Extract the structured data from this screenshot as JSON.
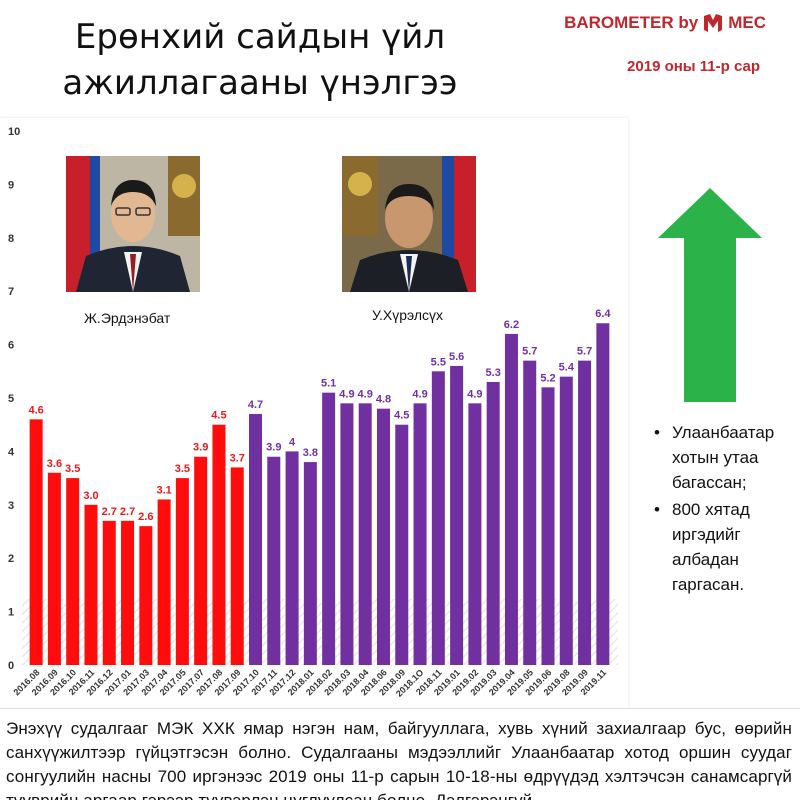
{
  "header": {
    "title_line1": "Ерөнхий сайдын үйл",
    "title_line2": "ажиллагааны үнэлгээ",
    "brand_prefix": "BAROMETER by",
    "brand_name": "MEC",
    "subtitle": "2019 оны 11-р сар",
    "brand_color": "#c0262d"
  },
  "photos": {
    "left_caption": "Ж.Эрдэнэбат",
    "right_caption": "У.Хүрэлсүх"
  },
  "side": {
    "arrow_color": "#2bb34a",
    "bullets": [
      "Улаанбаатар хотын утаа багассан;",
      "800 хятад иргэдийг албадан гаргасан."
    ]
  },
  "footer": {
    "text": "Энэхүү судалгааг МЭК ХХК ямар нэгэн нам, байгууллага, хувь хүний захиалгаар бус, өөрийн санхүүжилтээр гүйцэтгэсэн болно. Судалгааны мэдээллийг Улаанбаатар хотод оршин суудаг сонгуулийн насны 700 иргэнээс 2019 оны 11-р сарын 10-18-ны өдрүүдэд хэлтэчсэн санамсаргүй түүврийн аргаар гэрээр түүвэрлэн цуглуулсан болно. Дэлгэрэнгүй"
  },
  "chart_data": {
    "type": "bar",
    "ylim": [
      0,
      10
    ],
    "yticks": [
      0,
      1,
      2,
      3,
      4,
      5,
      6,
      7,
      8,
      9,
      10
    ],
    "grid": false,
    "categories": [
      "2016.08",
      "2016.09",
      "2016.10",
      "2016.11",
      "2016.12",
      "2017.01",
      "2017.03",
      "2017.04",
      "2017.05",
      "2017.07",
      "2017.08",
      "2017.09",
      "2017.10",
      "2017.11",
      "2017.12",
      "2018.01",
      "2018.02",
      "2018.03",
      "2018.04",
      "2018.06",
      "2018.09",
      "2018.1O",
      "2018.11",
      "2019.01",
      "2019.02",
      "2019.03",
      "2019.04",
      "2019.05",
      "2019.06",
      "2019.08",
      "2019.09",
      "2019.11"
    ],
    "values": [
      4.6,
      3.6,
      3.5,
      3.0,
      2.7,
      2.7,
      2.6,
      3.1,
      3.5,
      3.9,
      4.5,
      3.7,
      4.7,
      3.9,
      4.0,
      3.8,
      5.1,
      4.9,
      4.9,
      4.8,
      4.5,
      4.9,
      5.5,
      5.6,
      4.9,
      5.3,
      6.2,
      5.7,
      5.2,
      5.4,
      5.7,
      6.4
    ],
    "labels": [
      "4.6",
      "3.6",
      "3.5",
      "3.0",
      "2.7",
      "2.7",
      "2.6",
      "3.1",
      "3.5",
      "3.9",
      "4.5",
      "3.7",
      "4.7",
      "3.9",
      "4",
      "3.8",
      "5.1",
      "4.9",
      "4.9",
      "4.8",
      "4.5",
      "4.9",
      "5.5",
      "5.6",
      "4.9",
      "5.3",
      "6.2",
      "5.7",
      "5.2",
      "5.4",
      "5.7",
      "6.4"
    ],
    "colors": {
      "red": "#ff0d0d",
      "purple": "#7030a0",
      "red_label": "#e8191a",
      "purple_label": "#7030a0"
    },
    "red_count": 12
  }
}
